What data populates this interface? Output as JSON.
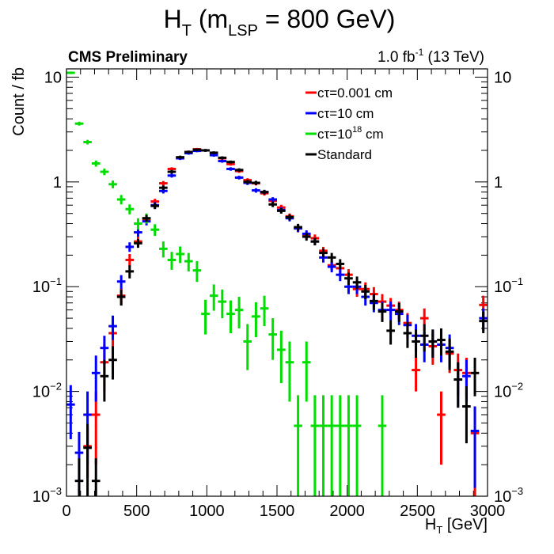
{
  "chart_data": {
    "type": "scatter",
    "title": "H",
    "title_sub": "T",
    "title_rest": " (m",
    "title_sub2": "LSP",
    "title_end": " = 800 GeV)",
    "label_left": "CMS Preliminary",
    "lumi_value": "1.0 fb",
    "lumi_sup": "-1",
    "lumi_energy": " (13 TeV)",
    "ylabel": "Count / fb",
    "xlabel_main": "H",
    "xlabel_sub": "T",
    "xlabel_unit": " [GeV]",
    "xlim": [
      0,
      3000
    ],
    "ylim": [
      0.001,
      12
    ],
    "yscale": "log",
    "x_ticks": [
      0,
      500,
      1000,
      1500,
      2000,
      2500,
      3000
    ],
    "y_ticks": [
      {
        "value": 0.001,
        "base": "10",
        "exp": "−3"
      },
      {
        "value": 0.01,
        "base": "10",
        "exp": "−2"
      },
      {
        "value": 0.1,
        "base": "10",
        "exp": "−1"
      },
      {
        "value": 1,
        "base": "1",
        "exp": ""
      },
      {
        "value": 10,
        "base": "10",
        "exp": ""
      }
    ],
    "bin_width": 60,
    "legend_placement": "top-right",
    "series": [
      {
        "name": "cτ=0.001 cm",
        "name_base": "cτ=0.001 cm",
        "name_sup": "",
        "name_unit": "",
        "color": "#ff0000",
        "points": [
          [
            150,
            0.003,
            0.0015
          ],
          [
            210,
            0.006,
            0.004
          ],
          [
            270,
            0.019,
            0.009
          ],
          [
            330,
            0.036,
            0.011
          ],
          [
            390,
            0.082,
            0.015
          ],
          [
            450,
            0.18,
            0.025
          ],
          [
            510,
            0.27,
            0.03
          ],
          [
            570,
            0.44,
            0.03
          ],
          [
            630,
            0.65,
            0.04
          ],
          [
            690,
            0.97,
            0.05
          ],
          [
            750,
            1.33,
            0.05
          ],
          [
            810,
            1.7,
            0.06
          ],
          [
            870,
            1.93,
            0.06
          ],
          [
            930,
            2.05,
            0.06
          ],
          [
            990,
            2.0,
            0.06
          ],
          [
            1050,
            1.88,
            0.06
          ],
          [
            1110,
            1.68,
            0.055
          ],
          [
            1170,
            1.48,
            0.05
          ],
          [
            1230,
            1.27,
            0.05
          ],
          [
            1290,
            1.04,
            0.045
          ],
          [
            1350,
            0.97,
            0.045
          ],
          [
            1410,
            0.78,
            0.04
          ],
          [
            1470,
            0.66,
            0.035
          ],
          [
            1530,
            0.57,
            0.035
          ],
          [
            1590,
            0.47,
            0.03
          ],
          [
            1650,
            0.36,
            0.03
          ],
          [
            1710,
            0.31,
            0.025
          ],
          [
            1770,
            0.29,
            0.025
          ],
          [
            1830,
            0.22,
            0.02
          ],
          [
            1890,
            0.16,
            0.018
          ],
          [
            1950,
            0.15,
            0.018
          ],
          [
            2010,
            0.13,
            0.017
          ],
          [
            2070,
            0.095,
            0.015
          ],
          [
            2130,
            0.095,
            0.015
          ],
          [
            2190,
            0.085,
            0.014
          ],
          [
            2250,
            0.072,
            0.013
          ],
          [
            2310,
            0.066,
            0.012
          ],
          [
            2370,
            0.06,
            0.012
          ],
          [
            2430,
            0.045,
            0.011
          ],
          [
            2490,
            0.016,
            0.006
          ],
          [
            2550,
            0.05,
            0.012
          ],
          [
            2610,
            0.027,
            0.009
          ],
          [
            2670,
            0.006,
            0.004
          ],
          [
            2730,
            0.023,
            0.008
          ],
          [
            2790,
            0.016,
            0.007
          ],
          [
            2850,
            0.015,
            0.006
          ],
          [
            2910,
            0.004,
            0.003
          ],
          [
            2970,
            0.067,
            0.015
          ]
        ]
      },
      {
        "name": "cτ=10 cm",
        "name_base": "cτ=10 cm",
        "name_sup": "",
        "name_unit": "",
        "color": "#0000ff",
        "points": [
          [
            30,
            0.0075,
            0.004
          ],
          [
            90,
            0.0026,
            0.0015
          ],
          [
            150,
            0.006,
            0.004
          ],
          [
            210,
            0.015,
            0.007
          ],
          [
            270,
            0.026,
            0.008
          ],
          [
            330,
            0.042,
            0.011
          ],
          [
            390,
            0.112,
            0.017
          ],
          [
            450,
            0.24,
            0.025
          ],
          [
            510,
            0.33,
            0.03
          ],
          [
            570,
            0.42,
            0.035
          ],
          [
            630,
            0.6,
            0.04
          ],
          [
            690,
            0.82,
            0.045
          ],
          [
            750,
            1.15,
            0.05
          ],
          [
            810,
            1.68,
            0.06
          ],
          [
            870,
            1.88,
            0.06
          ],
          [
            930,
            1.98,
            0.06
          ],
          [
            990,
            2.0,
            0.06
          ],
          [
            1050,
            1.8,
            0.06
          ],
          [
            1110,
            1.58,
            0.055
          ],
          [
            1170,
            1.33,
            0.05
          ],
          [
            1230,
            1.1,
            0.045
          ],
          [
            1290,
            0.98,
            0.045
          ],
          [
            1350,
            0.83,
            0.04
          ],
          [
            1410,
            0.8,
            0.04
          ],
          [
            1470,
            0.68,
            0.035
          ],
          [
            1530,
            0.54,
            0.032
          ],
          [
            1590,
            0.45,
            0.03
          ],
          [
            1650,
            0.36,
            0.028
          ],
          [
            1710,
            0.32,
            0.025
          ],
          [
            1770,
            0.27,
            0.022
          ],
          [
            1830,
            0.19,
            0.02
          ],
          [
            1890,
            0.155,
            0.018
          ],
          [
            1950,
            0.13,
            0.017
          ],
          [
            2010,
            0.1,
            0.015
          ],
          [
            2070,
            0.1,
            0.015
          ],
          [
            2130,
            0.08,
            0.014
          ],
          [
            2190,
            0.07,
            0.013
          ],
          [
            2250,
            0.06,
            0.012
          ],
          [
            2310,
            0.06,
            0.012
          ],
          [
            2370,
            0.055,
            0.012
          ],
          [
            2430,
            0.043,
            0.011
          ],
          [
            2490,
            0.034,
            0.01
          ],
          [
            2550,
            0.028,
            0.009
          ],
          [
            2610,
            0.03,
            0.009
          ],
          [
            2670,
            0.028,
            0.009
          ],
          [
            2730,
            0.026,
            0.009
          ],
          [
            2790,
            0.013,
            0.006
          ],
          [
            2850,
            0.014,
            0.006
          ],
          [
            2910,
            0.0042,
            0.003
          ],
          [
            2970,
            0.05,
            0.012
          ]
        ]
      },
      {
        "name": "cτ=10^18 cm",
        "name_base": "cτ=10",
        "name_sup": "18",
        "name_unit": " cm",
        "color": "#00dd00",
        "points": [
          [
            30,
            11,
            0.3
          ],
          [
            90,
            3.6,
            0.15
          ],
          [
            150,
            2.4,
            0.12
          ],
          [
            210,
            1.5,
            0.1
          ],
          [
            270,
            1.25,
            0.09
          ],
          [
            330,
            0.95,
            0.08
          ],
          [
            390,
            0.68,
            0.07
          ],
          [
            450,
            0.55,
            0.06
          ],
          [
            510,
            0.4,
            0.05
          ],
          [
            570,
            0.45,
            0.05
          ],
          [
            630,
            0.35,
            0.045
          ],
          [
            690,
            0.23,
            0.04
          ],
          [
            750,
            0.18,
            0.035
          ],
          [
            810,
            0.205,
            0.037
          ],
          [
            870,
            0.175,
            0.035
          ],
          [
            930,
            0.143,
            0.032
          ],
          [
            990,
            0.055,
            0.02
          ],
          [
            1050,
            0.082,
            0.023
          ],
          [
            1110,
            0.072,
            0.022
          ],
          [
            1170,
            0.055,
            0.019
          ],
          [
            1230,
            0.06,
            0.02
          ],
          [
            1290,
            0.03,
            0.014
          ],
          [
            1350,
            0.052,
            0.019
          ],
          [
            1410,
            0.062,
            0.02
          ],
          [
            1470,
            0.035,
            0.015
          ],
          [
            1530,
            0.025,
            0.013
          ],
          [
            1590,
            0.019,
            0.011
          ],
          [
            1650,
            0.0047,
            0.0045
          ],
          [
            1710,
            0.019,
            0.011
          ],
          [
            1770,
            0.0047,
            0.0045
          ],
          [
            1830,
            0.0047,
            0.0045
          ],
          [
            1890,
            0.0047,
            0.0045
          ],
          [
            1950,
            0.0047,
            0.0045
          ],
          [
            2010,
            0.0047,
            0.0045
          ],
          [
            2070,
            0.0047,
            0.0045
          ],
          [
            2250,
            0.0047,
            0.0045
          ]
        ]
      },
      {
        "name": "Standard",
        "name_base": "Standard",
        "name_sup": "",
        "name_unit": "",
        "color": "#000000",
        "points": [
          [
            90,
            0.0014,
            0.0009
          ],
          [
            150,
            0.0029,
            0.002
          ],
          [
            210,
            0.0014,
            0.0009
          ],
          [
            270,
            0.014,
            0.006
          ],
          [
            330,
            0.02,
            0.007
          ],
          [
            390,
            0.08,
            0.014
          ],
          [
            450,
            0.14,
            0.02
          ],
          [
            510,
            0.26,
            0.025
          ],
          [
            570,
            0.45,
            0.035
          ],
          [
            630,
            0.59,
            0.04
          ],
          [
            690,
            0.88,
            0.045
          ],
          [
            750,
            1.25,
            0.05
          ],
          [
            810,
            1.72,
            0.06
          ],
          [
            870,
            1.93,
            0.06
          ],
          [
            930,
            2.03,
            0.06
          ],
          [
            990,
            2.0,
            0.06
          ],
          [
            1050,
            1.9,
            0.06
          ],
          [
            1110,
            1.7,
            0.055
          ],
          [
            1170,
            1.55,
            0.05
          ],
          [
            1230,
            1.3,
            0.05
          ],
          [
            1290,
            1.0,
            0.045
          ],
          [
            1350,
            0.98,
            0.045
          ],
          [
            1410,
            0.8,
            0.04
          ],
          [
            1470,
            0.61,
            0.035
          ],
          [
            1530,
            0.53,
            0.032
          ],
          [
            1590,
            0.46,
            0.03
          ],
          [
            1650,
            0.37,
            0.028
          ],
          [
            1710,
            0.3,
            0.025
          ],
          [
            1770,
            0.27,
            0.022
          ],
          [
            1830,
            0.21,
            0.02
          ],
          [
            1890,
            0.19,
            0.02
          ],
          [
            1950,
            0.165,
            0.018
          ],
          [
            2010,
            0.12,
            0.016
          ],
          [
            2070,
            0.11,
            0.015
          ],
          [
            2130,
            0.09,
            0.014
          ],
          [
            2190,
            0.073,
            0.013
          ],
          [
            2250,
            0.058,
            0.012
          ],
          [
            2310,
            0.038,
            0.01
          ],
          [
            2370,
            0.058,
            0.012
          ],
          [
            2430,
            0.036,
            0.01
          ],
          [
            2490,
            0.03,
            0.009
          ],
          [
            2550,
            0.034,
            0.01
          ],
          [
            2610,
            0.03,
            0.009
          ],
          [
            2670,
            0.031,
            0.009
          ],
          [
            2730,
            0.024,
            0.008
          ],
          [
            2790,
            0.013,
            0.006
          ],
          [
            2850,
            0.0072,
            0.004
          ],
          [
            2910,
            0.015,
            0.006
          ],
          [
            2970,
            0.047,
            0.011
          ]
        ]
      }
    ]
  }
}
